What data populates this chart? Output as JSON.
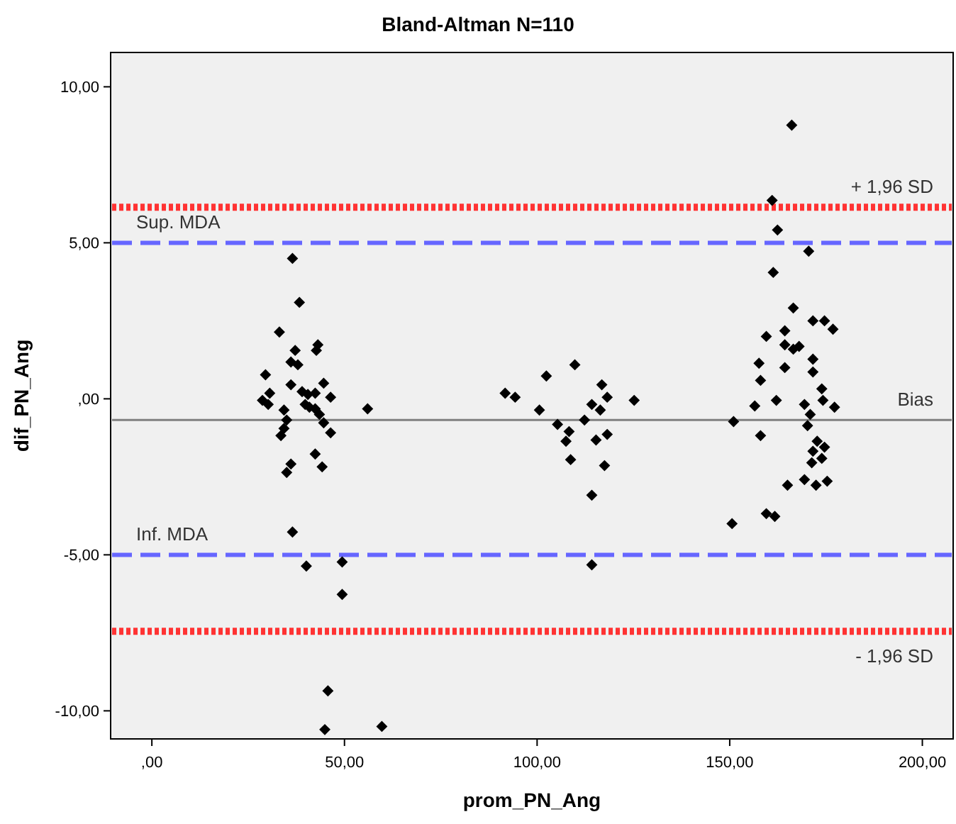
{
  "chart_data": {
    "type": "scatter",
    "title": "Bland-Altman N=110",
    "xlabel": "prom_PN_Ang",
    "ylabel": "dif_PN_Ang",
    "xlim": [
      -10.7,
      208
    ],
    "ylim": [
      -10.9,
      11.1
    ],
    "xticks": [
      {
        "value": 0,
        "label": ",00"
      },
      {
        "value": 50,
        "label": "50,00"
      },
      {
        "value": 100,
        "label": "100,00"
      },
      {
        "value": 150,
        "label": "150,00"
      },
      {
        "value": 200,
        "label": "200,00"
      }
    ],
    "yticks": [
      {
        "value": -10,
        "label": "-10,00"
      },
      {
        "value": -5,
        "label": "-5,00"
      },
      {
        "value": 0,
        "label": ",00"
      },
      {
        "value": 5,
        "label": "5,00"
      },
      {
        "value": 10,
        "label": "10,00"
      }
    ],
    "grid": false,
    "marker": "diamond",
    "ref_lines": [
      {
        "axis": "y",
        "value": 6.14,
        "label": "+ 1,96 SD",
        "color": "#ff3333",
        "line_style": "dotted"
      },
      {
        "axis": "y",
        "value": 5,
        "label": "Sup. MDA",
        "color": "#6666ff",
        "line_style": "dashed"
      },
      {
        "axis": "y",
        "value": -0.68,
        "label": "Bias",
        "color": "#808080",
        "line_style": "solid"
      },
      {
        "axis": "y",
        "value": -5,
        "label": "Inf. MDA",
        "color": "#6666ff",
        "line_style": "dashed"
      },
      {
        "axis": "y",
        "value": -7.45,
        "label": "- 1,96 SD",
        "color": "#ff3333",
        "line_style": "dotted"
      }
    ],
    "series": [
      {
        "color": "#000000",
        "x": [
          36.5,
          38.3,
          33.1,
          37.2,
          43.1,
          42.7,
          36.1,
          37.9,
          29.5,
          36.1,
          44.6,
          30.6,
          28.7,
          30.2,
          39.0,
          40.5,
          42.4,
          46.4,
          39.8,
          40.9,
          42.4,
          34.3,
          43.5,
          35.0,
          44.6,
          34.3,
          46.4,
          33.5,
          56.0,
          42.4,
          44.2,
          36.1,
          35.0,
          36.5,
          40.1,
          49.4,
          49.4,
          45.7,
          44.9,
          59.7,
          91.7,
          94.3,
          102.4,
          109.8,
          116.8,
          118.2,
          114.2,
          116.4,
          125.2,
          100.6,
          112.3,
          105.3,
          108.3,
          107.5,
          118.2,
          115.3,
          108.7,
          117.5,
          114.2,
          114.2,
          166.1,
          161.0,
          162.4,
          170.5,
          161.3,
          166.5,
          171.6,
          174.6,
          176.8,
          159.5,
          164.3,
          164.3,
          166.5,
          168.0,
          171.6,
          171.6,
          157.6,
          158.0,
          164.3,
          173.9,
          174.2,
          177.2,
          162.1,
          156.5,
          169.4,
          170.9,
          170.2,
          151.0,
          158.0,
          172.7,
          174.6,
          171.6,
          173.9,
          171.3,
          169.4,
          172.4,
          175.3,
          165.0,
          159.5,
          161.7,
          150.6
        ],
        "values": [
          4.5,
          3.09,
          2.14,
          1.55,
          1.73,
          1.55,
          1.18,
          1.09,
          0.77,
          0.45,
          0.5,
          0.18,
          -0.05,
          -0.18,
          0.23,
          0.14,
          0.18,
          0.05,
          -0.18,
          -0.27,
          -0.32,
          -0.36,
          -0.5,
          -0.68,
          -0.77,
          -0.95,
          -1.09,
          -1.18,
          -0.32,
          -1.77,
          -2.18,
          -2.09,
          -2.36,
          -4.27,
          -5.36,
          -5.23,
          -6.27,
          -9.36,
          -10.6,
          -10.5,
          0.18,
          0.05,
          0.73,
          1.09,
          0.45,
          0.05,
          -0.18,
          -0.36,
          -0.05,
          -0.36,
          -0.68,
          -0.82,
          -1.05,
          -1.36,
          -1.14,
          -1.32,
          -1.95,
          -2.14,
          -3.09,
          -5.32,
          8.77,
          6.36,
          5.41,
          4.73,
          4.05,
          2.91,
          2.5,
          2.5,
          2.23,
          2.0,
          2.18,
          1.73,
          1.59,
          1.68,
          1.27,
          0.86,
          1.14,
          0.59,
          1.0,
          0.32,
          -0.05,
          -0.27,
          -0.05,
          -0.23,
          -0.18,
          -0.5,
          -0.86,
          -0.73,
          -1.18,
          -1.36,
          -1.55,
          -1.68,
          -1.91,
          -2.05,
          -2.59,
          -2.77,
          -2.64,
          -2.77,
          -3.68,
          -3.77,
          -4.0
        ]
      }
    ]
  }
}
